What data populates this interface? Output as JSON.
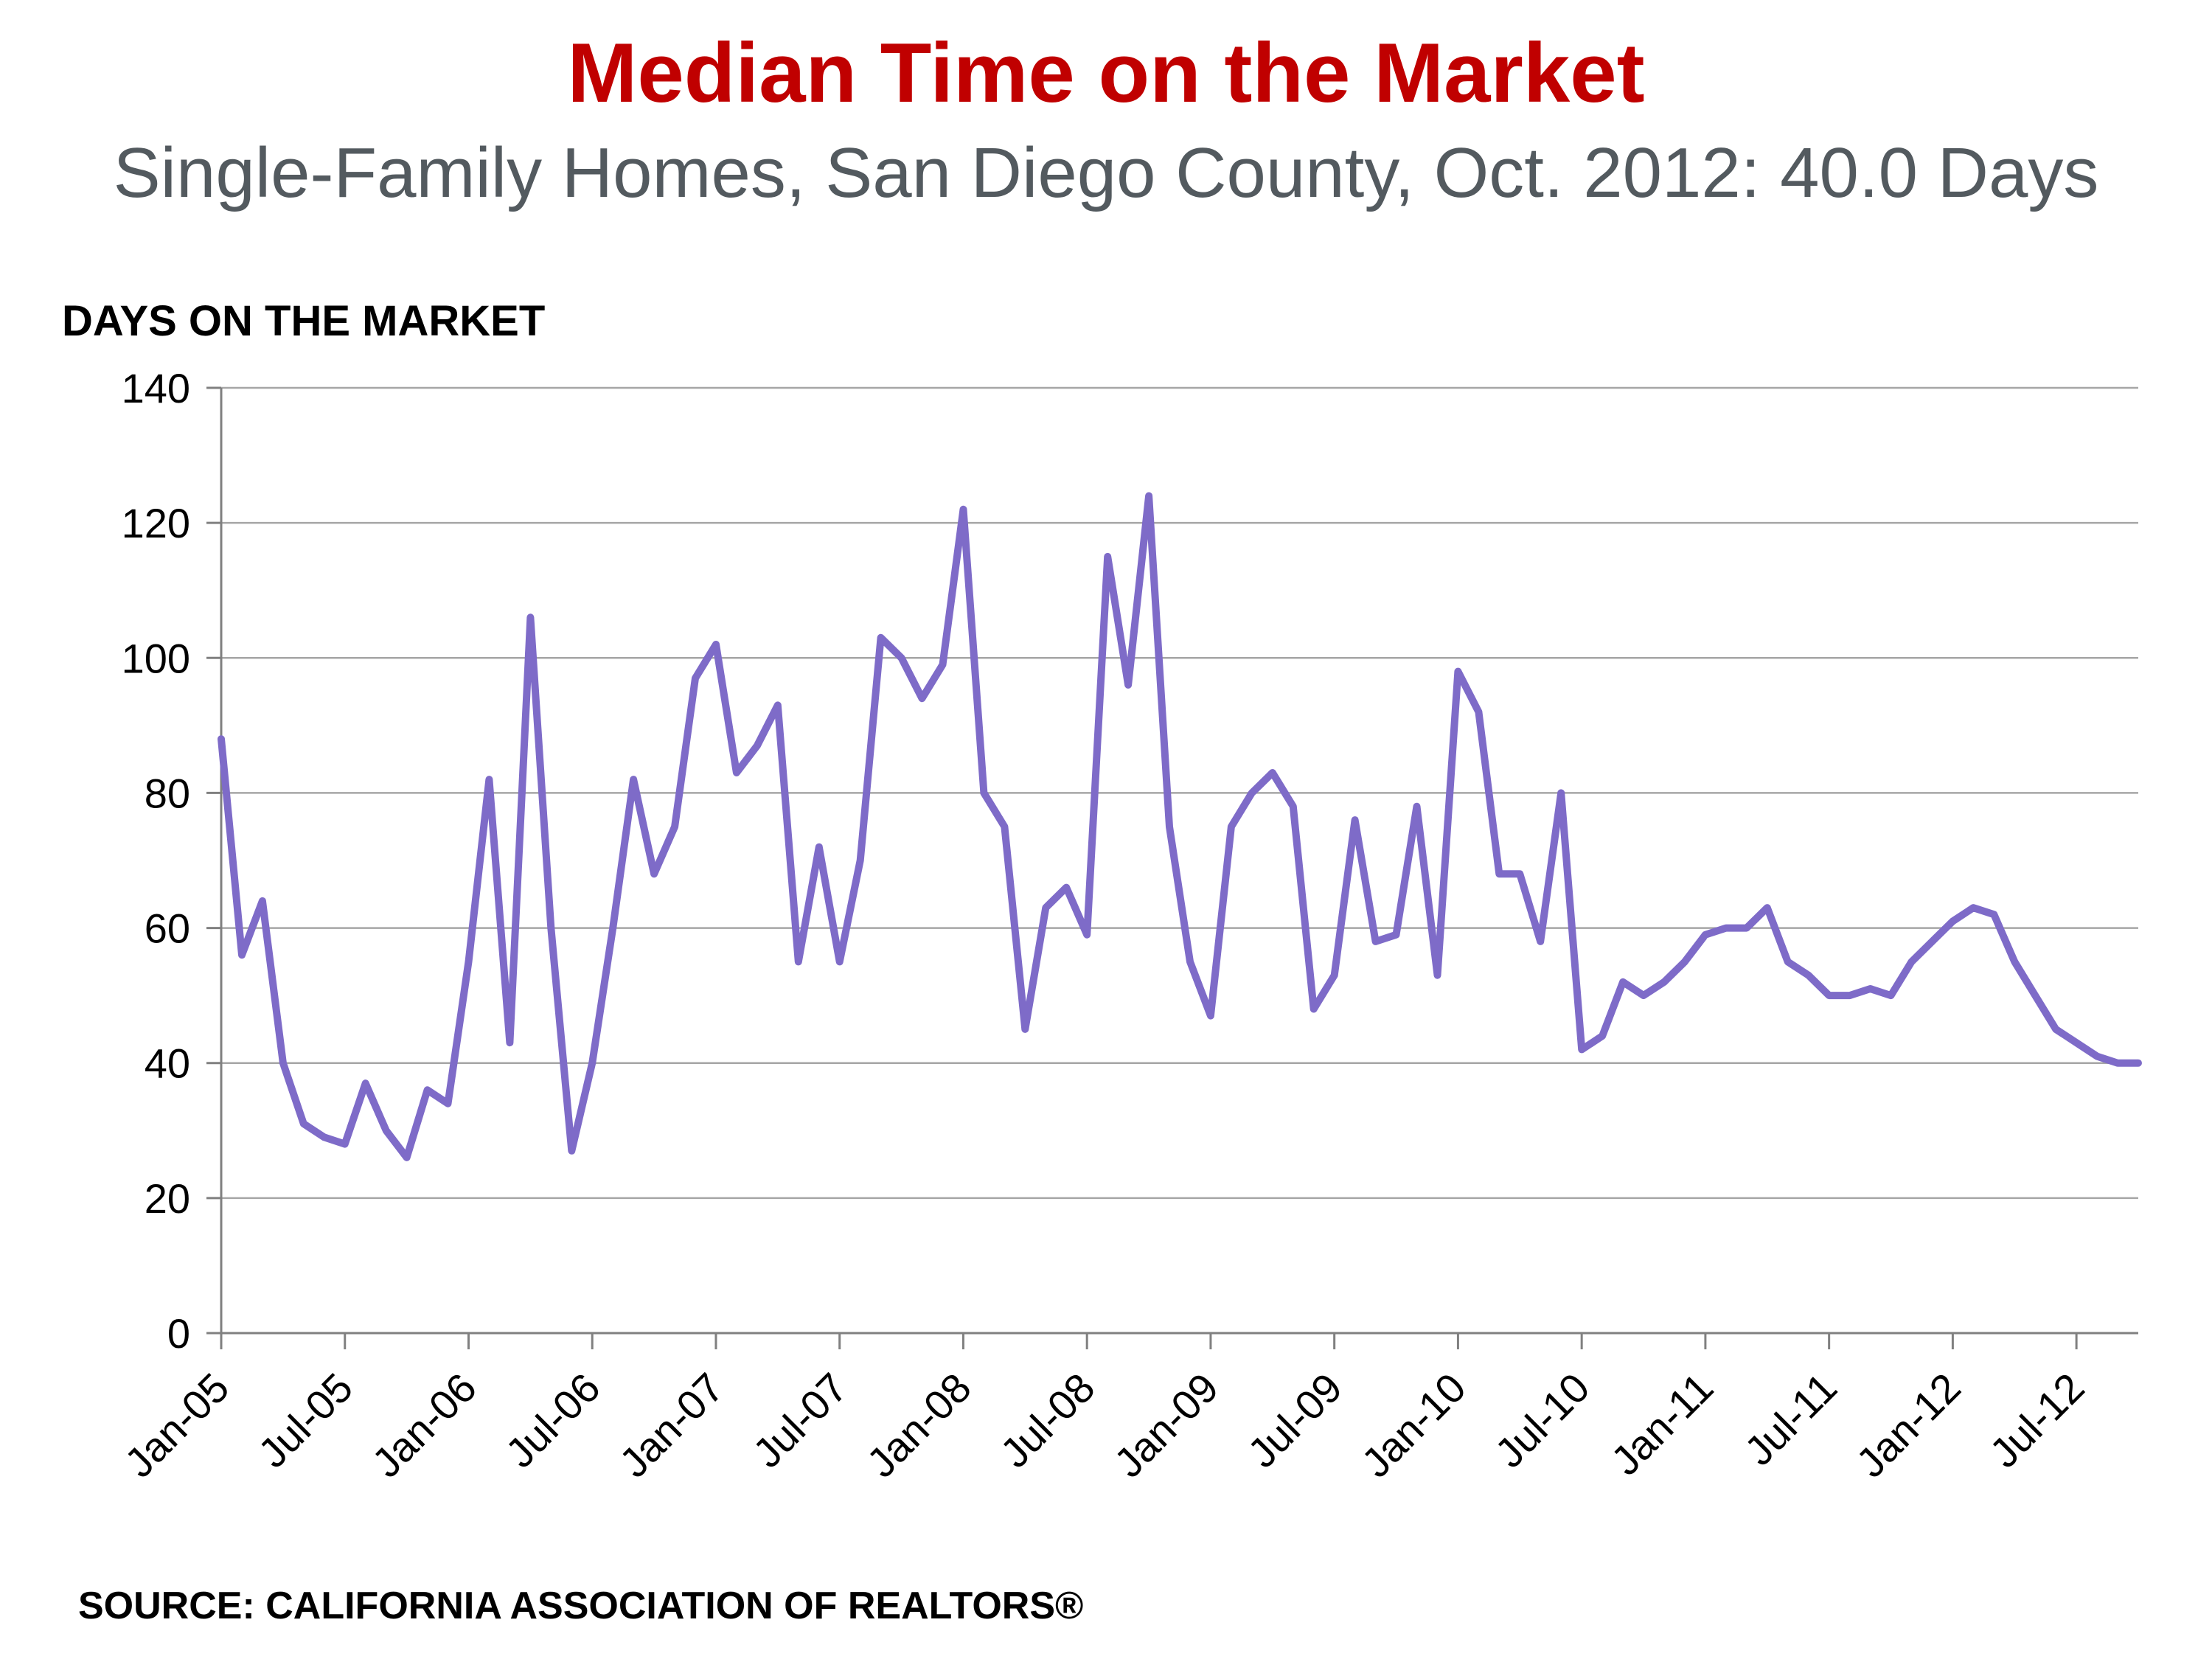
{
  "header": {
    "title": "Median Time on the Market",
    "subtitle": "Single-Family Homes, San Diego County, Oct. 2012: 40.0 Days",
    "title_color": "#C00000",
    "subtitle_color": "#535A5F"
  },
  "chart": {
    "axis_title": "DAYS ON THE MARKET"
  },
  "footer": {
    "source": "SOURCE: CALIFORNIA ASSOCIATION OF REALTORS®"
  },
  "chart_data": {
    "type": "line",
    "title": "Median Time on the Market",
    "subtitle": "Single-Family Homes, San Diego County, Oct. 2012: 40.0 Days",
    "xlabel": "",
    "ylabel": "DAYS ON THE MARKET",
    "ylim": [
      0,
      140
    ],
    "ytick_step": 20,
    "grid": true,
    "legend_position": "none",
    "line_color": "#7E6BC8",
    "grid_color": "#A6A6A6",
    "axis_color": "#808080",
    "x_tick_every": 6,
    "x_tick_labels": [
      "Jan-05",
      "Jul-05",
      "Jan-06",
      "Jul-06",
      "Jan-07",
      "Jul-07",
      "Jan-08",
      "Jul-08",
      "Jan-09",
      "Jul-09",
      "Jan-10",
      "Jul-10",
      "Jan-11",
      "Jul-11",
      "Jan-12",
      "Jul-12"
    ],
    "categories": [
      "Jan-05",
      "Feb-05",
      "Mar-05",
      "Apr-05",
      "May-05",
      "Jun-05",
      "Jul-05",
      "Aug-05",
      "Sep-05",
      "Oct-05",
      "Nov-05",
      "Dec-05",
      "Jan-06",
      "Feb-06",
      "Mar-06",
      "Apr-06",
      "May-06",
      "Jun-06",
      "Jul-06",
      "Aug-06",
      "Sep-06",
      "Oct-06",
      "Nov-06",
      "Dec-06",
      "Jan-07",
      "Feb-07",
      "Mar-07",
      "Apr-07",
      "May-07",
      "Jun-07",
      "Jul-07",
      "Aug-07",
      "Sep-07",
      "Oct-07",
      "Nov-07",
      "Dec-07",
      "Jan-08",
      "Feb-08",
      "Mar-08",
      "Apr-08",
      "May-08",
      "Jun-08",
      "Jul-08",
      "Aug-08",
      "Sep-08",
      "Oct-08",
      "Nov-08",
      "Dec-08",
      "Jan-09",
      "Feb-09",
      "Mar-09",
      "Apr-09",
      "May-09",
      "Jun-09",
      "Jul-09",
      "Aug-09",
      "Sep-09",
      "Oct-09",
      "Nov-09",
      "Dec-09",
      "Jan-10",
      "Feb-10",
      "Mar-10",
      "Apr-10",
      "May-10",
      "Jun-10",
      "Jul-10",
      "Aug-10",
      "Sep-10",
      "Oct-10",
      "Nov-10",
      "Dec-10",
      "Jan-11",
      "Feb-11",
      "Mar-11",
      "Apr-11",
      "May-11",
      "Jun-11",
      "Jul-11",
      "Aug-11",
      "Sep-11",
      "Oct-11",
      "Nov-11",
      "Dec-11",
      "Jan-12",
      "Feb-12",
      "Mar-12",
      "Apr-12",
      "May-12",
      "Jun-12",
      "Jul-12",
      "Aug-12",
      "Sep-12",
      "Oct-12"
    ],
    "series": [
      {
        "name": "Median time on the market (days)",
        "values": [
          88,
          56,
          64,
          40,
          31,
          29,
          28,
          37,
          30,
          26,
          36,
          34,
          55,
          82,
          43,
          106,
          60,
          27,
          40,
          60,
          82,
          68,
          75,
          97,
          102,
          83,
          87,
          93,
          55,
          72,
          55,
          70,
          103,
          100,
          94,
          99,
          122,
          80,
          75,
          45,
          63,
          66,
          59,
          115,
          96,
          124,
          75,
          55,
          47,
          75,
          80,
          83,
          78,
          48,
          53,
          76,
          58,
          59,
          78,
          53,
          98,
          92,
          68,
          68,
          58,
          80,
          42,
          44,
          52,
          50,
          52,
          55,
          59,
          60,
          60,
          63,
          55,
          53,
          50,
          50,
          51,
          50,
          55,
          58,
          61,
          63,
          62,
          55,
          50,
          45,
          43,
          41,
          40,
          40
        ]
      }
    ],
    "highlight_last_value": 40.0
  }
}
